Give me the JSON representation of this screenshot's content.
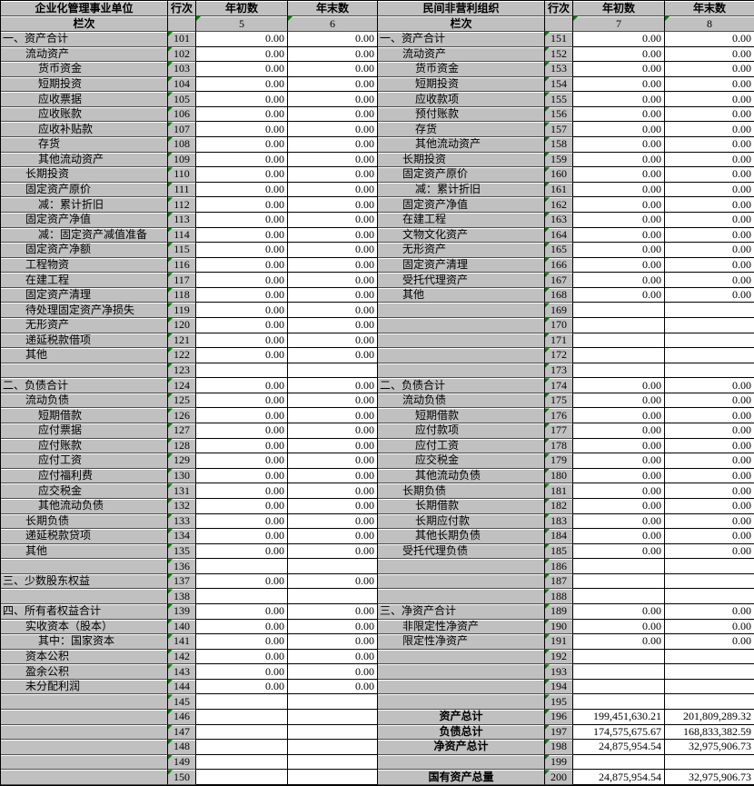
{
  "colors": {
    "cell_gray": "#c0c0c0",
    "value_bg": "#ffffff",
    "grid_black": "#000000",
    "triangle_green": "#007b00"
  },
  "icons": {
    "corner_marker": "green-corner-triangle"
  },
  "tables": [
    {
      "title": "企业化管理事业单位",
      "col_row": "行次",
      "col_begin": "年初数",
      "col_end": "年末数",
      "subheader": "栏次",
      "col_index_begin": "5",
      "col_index_end": "6",
      "rows": [
        {
          "no": "101",
          "label": "一、资产合计",
          "indent": 0,
          "v1": "0.00",
          "v2": "0.00"
        },
        {
          "no": "102",
          "label": "流动资产",
          "indent": 1,
          "v1": "0.00",
          "v2": "0.00"
        },
        {
          "no": "103",
          "label": "货币资金",
          "indent": 2,
          "v1": "0.00",
          "v2": "0.00"
        },
        {
          "no": "104",
          "label": "短期投资",
          "indent": 2,
          "v1": "0.00",
          "v2": "0.00"
        },
        {
          "no": "105",
          "label": "应收票据",
          "indent": 2,
          "v1": "0.00",
          "v2": "0.00"
        },
        {
          "no": "106",
          "label": "应收账款",
          "indent": 2,
          "v1": "0.00",
          "v2": "0.00"
        },
        {
          "no": "107",
          "label": "应收补贴款",
          "indent": 2,
          "v1": "0.00",
          "v2": "0.00"
        },
        {
          "no": "108",
          "label": "存货",
          "indent": 2,
          "v1": "0.00",
          "v2": "0.00"
        },
        {
          "no": "109",
          "label": "其他流动资产",
          "indent": 2,
          "v1": "0.00",
          "v2": "0.00"
        },
        {
          "no": "110",
          "label": "长期投资",
          "indent": 1,
          "v1": "0.00",
          "v2": "0.00"
        },
        {
          "no": "111",
          "label": "固定资产原价",
          "indent": 1,
          "v1": "0.00",
          "v2": "0.00"
        },
        {
          "no": "112",
          "label": "减：累计折旧",
          "indent": 2,
          "v1": "0.00",
          "v2": "0.00"
        },
        {
          "no": "113",
          "label": "固定资产净值",
          "indent": 1,
          "v1": "0.00",
          "v2": "0.00"
        },
        {
          "no": "114",
          "label": "减：固定资产减值准备",
          "indent": 2,
          "v1": "0.00",
          "v2": "0.00"
        },
        {
          "no": "115",
          "label": "固定资产净额",
          "indent": 1,
          "v1": "0.00",
          "v2": "0.00"
        },
        {
          "no": "116",
          "label": "工程物资",
          "indent": 1,
          "v1": "0.00",
          "v2": "0.00"
        },
        {
          "no": "117",
          "label": "在建工程",
          "indent": 1,
          "v1": "0.00",
          "v2": "0.00"
        },
        {
          "no": "118",
          "label": "固定资产清理",
          "indent": 1,
          "v1": "0.00",
          "v2": "0.00"
        },
        {
          "no": "119",
          "label": "待处理固定资产净损失",
          "indent": 1,
          "v1": "0.00",
          "v2": "0.00"
        },
        {
          "no": "120",
          "label": "无形资产",
          "indent": 1,
          "v1": "0.00",
          "v2": "0.00"
        },
        {
          "no": "121",
          "label": "递延税款借项",
          "indent": 1,
          "v1": "0.00",
          "v2": "0.00"
        },
        {
          "no": "122",
          "label": "其他",
          "indent": 1,
          "v1": "0.00",
          "v2": "0.00"
        },
        {
          "no": "123",
          "label": "",
          "indent": 0,
          "v1": "",
          "v2": ""
        },
        {
          "no": "124",
          "label": "二、负债合计",
          "indent": 0,
          "v1": "0.00",
          "v2": "0.00"
        },
        {
          "no": "125",
          "label": "流动负债",
          "indent": 1,
          "v1": "0.00",
          "v2": "0.00"
        },
        {
          "no": "126",
          "label": "短期借款",
          "indent": 2,
          "v1": "0.00",
          "v2": "0.00"
        },
        {
          "no": "127",
          "label": "应付票据",
          "indent": 2,
          "v1": "0.00",
          "v2": "0.00"
        },
        {
          "no": "128",
          "label": "应付账款",
          "indent": 2,
          "v1": "0.00",
          "v2": "0.00"
        },
        {
          "no": "129",
          "label": "应付工资",
          "indent": 2,
          "v1": "0.00",
          "v2": "0.00"
        },
        {
          "no": "130",
          "label": "应付福利费",
          "indent": 2,
          "v1": "0.00",
          "v2": "0.00"
        },
        {
          "no": "131",
          "label": "应交税金",
          "indent": 2,
          "v1": "0.00",
          "v2": "0.00"
        },
        {
          "no": "132",
          "label": "其他流动负债",
          "indent": 2,
          "v1": "0.00",
          "v2": "0.00"
        },
        {
          "no": "133",
          "label": "长期负债",
          "indent": 1,
          "v1": "0.00",
          "v2": "0.00"
        },
        {
          "no": "134",
          "label": "递延税款贷项",
          "indent": 1,
          "v1": "0.00",
          "v2": "0.00"
        },
        {
          "no": "135",
          "label": "其他",
          "indent": 1,
          "v1": "0.00",
          "v2": "0.00"
        },
        {
          "no": "136",
          "label": "",
          "indent": 0,
          "v1": "",
          "v2": ""
        },
        {
          "no": "137",
          "label": "三、少数股东权益",
          "indent": 0,
          "v1": "0.00",
          "v2": "0.00"
        },
        {
          "no": "138",
          "label": "",
          "indent": 0,
          "v1": "",
          "v2": ""
        },
        {
          "no": "139",
          "label": "四、所有者权益合计",
          "indent": 0,
          "v1": "0.00",
          "v2": "0.00"
        },
        {
          "no": "140",
          "label": "实收资本（股本）",
          "indent": 1,
          "v1": "0.00",
          "v2": "0.00"
        },
        {
          "no": "141",
          "label": "其中：国家资本",
          "indent": 2,
          "v1": "0.00",
          "v2": "0.00"
        },
        {
          "no": "142",
          "label": "资本公积",
          "indent": 1,
          "v1": "0.00",
          "v2": "0.00"
        },
        {
          "no": "143",
          "label": "盈余公积",
          "indent": 1,
          "v1": "0.00",
          "v2": "0.00"
        },
        {
          "no": "144",
          "label": "未分配利润",
          "indent": 1,
          "v1": "0.00",
          "v2": "0.00"
        },
        {
          "no": "145",
          "label": "",
          "indent": 0,
          "v1": "",
          "v2": ""
        },
        {
          "no": "146",
          "label": "",
          "indent": 0,
          "v1": "",
          "v2": ""
        },
        {
          "no": "147",
          "label": "",
          "indent": 0,
          "v1": "",
          "v2": ""
        },
        {
          "no": "148",
          "label": "",
          "indent": 0,
          "v1": "",
          "v2": ""
        },
        {
          "no": "149",
          "label": "",
          "indent": 0,
          "v1": "",
          "v2": ""
        },
        {
          "no": "150",
          "label": "",
          "indent": 0,
          "v1": "",
          "v2": ""
        }
      ]
    },
    {
      "title": "民间非营利组织",
      "col_row": "行次",
      "col_begin": "年初数",
      "col_end": "年末数",
      "subheader": "栏次",
      "col_index_begin": "7",
      "col_index_end": "8",
      "rows": [
        {
          "no": "151",
          "label": "一、资产合计",
          "indent": 0,
          "v1": "0.00",
          "v2": "0.00"
        },
        {
          "no": "152",
          "label": "流动资产",
          "indent": 1,
          "v1": "0.00",
          "v2": "0.00"
        },
        {
          "no": "153",
          "label": "货币资金",
          "indent": 2,
          "v1": "0.00",
          "v2": "0.00"
        },
        {
          "no": "154",
          "label": "短期投资",
          "indent": 2,
          "v1": "0.00",
          "v2": "0.00"
        },
        {
          "no": "155",
          "label": "应收款项",
          "indent": 2,
          "v1": "0.00",
          "v2": "0.00"
        },
        {
          "no": "156",
          "label": "预付账款",
          "indent": 2,
          "v1": "0.00",
          "v2": "0.00"
        },
        {
          "no": "157",
          "label": "存货",
          "indent": 2,
          "v1": "0.00",
          "v2": "0.00"
        },
        {
          "no": "158",
          "label": "其他流动资产",
          "indent": 2,
          "v1": "0.00",
          "v2": "0.00"
        },
        {
          "no": "159",
          "label": "长期投资",
          "indent": 1,
          "v1": "0.00",
          "v2": "0.00"
        },
        {
          "no": "160",
          "label": "固定资产原价",
          "indent": 1,
          "v1": "0.00",
          "v2": "0.00"
        },
        {
          "no": "161",
          "label": "减：累计折旧",
          "indent": 2,
          "v1": "0.00",
          "v2": "0.00"
        },
        {
          "no": "162",
          "label": "固定资产净值",
          "indent": 1,
          "v1": "0.00",
          "v2": "0.00"
        },
        {
          "no": "163",
          "label": "在建工程",
          "indent": 1,
          "v1": "0.00",
          "v2": "0.00"
        },
        {
          "no": "164",
          "label": "文物文化资产",
          "indent": 1,
          "v1": "0.00",
          "v2": "0.00"
        },
        {
          "no": "165",
          "label": "无形资产",
          "indent": 1,
          "v1": "0.00",
          "v2": "0.00"
        },
        {
          "no": "166",
          "label": "固定资产清理",
          "indent": 1,
          "v1": "0.00",
          "v2": "0.00"
        },
        {
          "no": "167",
          "label": "受托代理资产",
          "indent": 1,
          "v1": "0.00",
          "v2": "0.00"
        },
        {
          "no": "168",
          "label": "其他",
          "indent": 1,
          "v1": "0.00",
          "v2": "0.00"
        },
        {
          "no": "169",
          "label": "",
          "indent": 0,
          "v1": "",
          "v2": ""
        },
        {
          "no": "170",
          "label": "",
          "indent": 0,
          "v1": "",
          "v2": ""
        },
        {
          "no": "171",
          "label": "",
          "indent": 0,
          "v1": "",
          "v2": ""
        },
        {
          "no": "172",
          "label": "",
          "indent": 0,
          "v1": "",
          "v2": ""
        },
        {
          "no": "173",
          "label": "",
          "indent": 0,
          "v1": "",
          "v2": ""
        },
        {
          "no": "174",
          "label": "二、负债合计",
          "indent": 0,
          "v1": "0.00",
          "v2": "0.00"
        },
        {
          "no": "175",
          "label": "流动负债",
          "indent": 1,
          "v1": "0.00",
          "v2": "0.00"
        },
        {
          "no": "176",
          "label": "短期借款",
          "indent": 2,
          "v1": "0.00",
          "v2": "0.00"
        },
        {
          "no": "177",
          "label": "应付款项",
          "indent": 2,
          "v1": "0.00",
          "v2": "0.00"
        },
        {
          "no": "178",
          "label": "应付工资",
          "indent": 2,
          "v1": "0.00",
          "v2": "0.00"
        },
        {
          "no": "179",
          "label": "应交税金",
          "indent": 2,
          "v1": "0.00",
          "v2": "0.00"
        },
        {
          "no": "180",
          "label": "其他流动负债",
          "indent": 2,
          "v1": "0.00",
          "v2": "0.00"
        },
        {
          "no": "181",
          "label": "长期负债",
          "indent": 1,
          "v1": "0.00",
          "v2": "0.00"
        },
        {
          "no": "182",
          "label": "长期借款",
          "indent": 2,
          "v1": "0.00",
          "v2": "0.00"
        },
        {
          "no": "183",
          "label": "长期应付款",
          "indent": 2,
          "v1": "0.00",
          "v2": "0.00"
        },
        {
          "no": "184",
          "label": "其他长期负债",
          "indent": 2,
          "v1": "0.00",
          "v2": "0.00"
        },
        {
          "no": "185",
          "label": "受托代理负债",
          "indent": 1,
          "v1": "0.00",
          "v2": "0.00"
        },
        {
          "no": "186",
          "label": "",
          "indent": 0,
          "v1": "",
          "v2": ""
        },
        {
          "no": "187",
          "label": "",
          "indent": 0,
          "v1": "",
          "v2": ""
        },
        {
          "no": "188",
          "label": "",
          "indent": 0,
          "v1": "",
          "v2": ""
        },
        {
          "no": "189",
          "label": "三、净资产合计",
          "indent": 0,
          "v1": "0.00",
          "v2": "0.00"
        },
        {
          "no": "190",
          "label": "非限定性净资产",
          "indent": 1,
          "v1": "0.00",
          "v2": "0.00"
        },
        {
          "no": "191",
          "label": "限定性净资产",
          "indent": 1,
          "v1": "0.00",
          "v2": "0.00"
        },
        {
          "no": "192",
          "label": "",
          "indent": 0,
          "v1": "",
          "v2": ""
        },
        {
          "no": "193",
          "label": "",
          "indent": 0,
          "v1": "",
          "v2": ""
        },
        {
          "no": "194",
          "label": "",
          "indent": 0,
          "v1": "",
          "v2": ""
        },
        {
          "no": "195",
          "label": "",
          "indent": 0,
          "v1": "",
          "v2": ""
        },
        {
          "no": "196",
          "label": "资产总计",
          "indent": 0,
          "bold": true,
          "v1": "199,451,630.21",
          "v2": "201,809,289.32"
        },
        {
          "no": "197",
          "label": "负债总计",
          "indent": 0,
          "bold": true,
          "v1": "174,575,675.67",
          "v2": "168,833,382.59"
        },
        {
          "no": "198",
          "label": "净资产总计",
          "indent": 0,
          "bold": true,
          "v1": "24,875,954.54",
          "v2": "32,975,906.73"
        },
        {
          "no": "199",
          "label": "",
          "indent": 0,
          "v1": "",
          "v2": ""
        },
        {
          "no": "200",
          "label": "国有资产总量",
          "indent": 0,
          "bold": true,
          "v1": "24,875,954.54",
          "v2": "32,975,906.73"
        }
      ]
    }
  ]
}
